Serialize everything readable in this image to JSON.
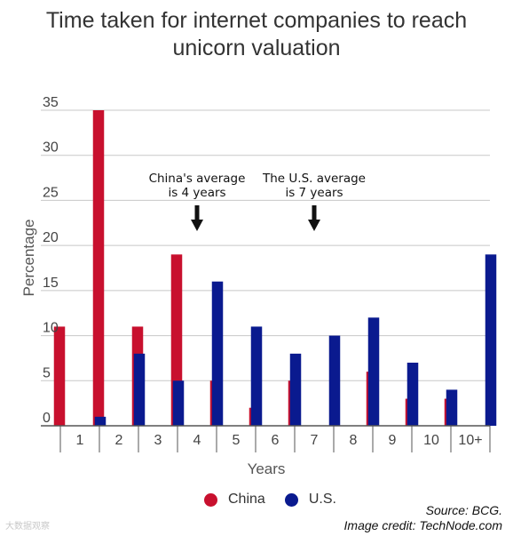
{
  "title_line1": "Time taken for internet companies to reach",
  "title_line2": "unicorn valuation",
  "colors": {
    "china": "#c8102e",
    "us": "#0a1a8f",
    "grid": "#c8c8c8",
    "axis": "#555555"
  },
  "chart_data": {
    "type": "bar",
    "categories": [
      "1",
      "2",
      "3",
      "4",
      "5",
      "6",
      "7",
      "8",
      "9",
      "10",
      "10+"
    ],
    "series": [
      {
        "name": "China",
        "values": [
          11,
          35,
          11,
          19,
          5,
          2,
          5,
          0,
          6,
          3,
          3
        ]
      },
      {
        "name": "U.S.",
        "values": [
          1,
          8,
          5,
          16,
          11,
          8,
          10,
          12,
          7,
          4,
          19
        ]
      }
    ],
    "xlabel": "Years",
    "ylabel": "Percentage",
    "ylim": [
      0,
      35
    ],
    "yticks": [
      0,
      5,
      10,
      15,
      20,
      25,
      30,
      35
    ],
    "grid": true,
    "legend_position": "bottom",
    "annotations": [
      {
        "line1": "China's average",
        "line2": "is 4 years",
        "category": "4"
      },
      {
        "line1": "The U.S. average",
        "line2": "is 7 years",
        "category": "7"
      }
    ]
  },
  "source": "Source: BCG.",
  "credit": "Image credit: TechNode.com",
  "watermark": "大数据观察"
}
